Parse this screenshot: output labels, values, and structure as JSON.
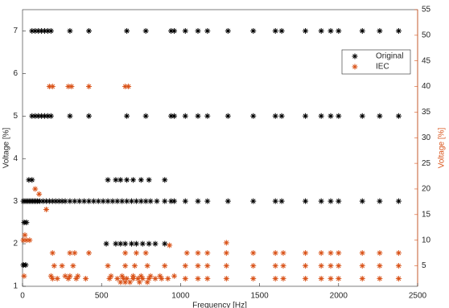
{
  "chart_data": {
    "type": "scatter",
    "xlabel": "Frequency [Hz]",
    "ylabel": "Voltage [%]",
    "y2label": "Voltage [%]",
    "xlim": [
      0,
      2500
    ],
    "xticks": [
      0,
      500,
      1000,
      1500,
      2000,
      2500
    ],
    "ylim": [
      1,
      7.5
    ],
    "yticks": [
      1,
      2,
      3,
      4,
      5,
      6,
      7
    ],
    "y2lim": [
      1,
      55
    ],
    "y2ticks": [
      5,
      10,
      15,
      20,
      25,
      30,
      35,
      40,
      45,
      50,
      55
    ],
    "y2color": "#d95319",
    "legend": "upper right",
    "series": [
      {
        "name": "Original",
        "color": "#000000",
        "x": [
          60,
          80,
          100,
          120,
          140,
          160,
          180,
          300,
          420,
          660,
          780,
          940,
          960,
          1030,
          1110,
          1170,
          1300,
          1460,
          1600,
          1640,
          1790,
          1890,
          1950,
          2000,
          2150,
          2260,
          2380,
          60,
          80,
          100,
          120,
          140,
          160,
          180,
          300,
          420,
          660,
          780,
          940,
          960,
          1030,
          1110,
          1170,
          1300,
          1460,
          1600,
          1640,
          1790,
          1890,
          1950,
          2000,
          2150,
          2260,
          2380,
          5,
          15,
          25,
          35,
          45,
          55,
          65,
          75,
          85,
          95,
          110,
          130,
          150,
          170,
          190,
          210,
          230,
          250,
          270,
          300,
          330,
          360,
          390,
          420,
          450,
          480,
          510,
          540,
          570,
          600,
          630,
          660,
          690,
          720,
          750,
          780,
          810,
          850,
          900,
          940,
          960,
          1030,
          1110,
          1170,
          1300,
          1460,
          1600,
          1640,
          1790,
          1890,
          1950,
          2000,
          2150,
          2260,
          2380,
          40,
          60,
          540,
          590,
          620,
          660,
          700,
          750,
          800,
          900,
          10,
          25,
          530,
          590,
          620,
          650,
          690,
          720,
          760,
          800,
          840,
          900,
          5,
          20
        ],
        "values": [
          7,
          7,
          7,
          7,
          7,
          7,
          7,
          7,
          7,
          7,
          7,
          7,
          7,
          7,
          7,
          7,
          7,
          7,
          7,
          7,
          7,
          7,
          7,
          7,
          7,
          7,
          7,
          5,
          5,
          5,
          5,
          5,
          5,
          5,
          5,
          5,
          5,
          5,
          5,
          5,
          5,
          5,
          5,
          5,
          5,
          5,
          5,
          5,
          5,
          5,
          5,
          5,
          5,
          5,
          3,
          3,
          3,
          3,
          3,
          3,
          3,
          3,
          3,
          3,
          3,
          3,
          3,
          3,
          3,
          3,
          3,
          3,
          3,
          3,
          3,
          3,
          3,
          3,
          3,
          3,
          3,
          3,
          3,
          3,
          3,
          3,
          3,
          3,
          3,
          3,
          3,
          3,
          3,
          3,
          3,
          3,
          3,
          3,
          3,
          3,
          3,
          3,
          3,
          3,
          3,
          3,
          3,
          3,
          3,
          3.5,
          3.5,
          3.5,
          3.5,
          3.5,
          3.5,
          3.5,
          3.5,
          3.5,
          3.5,
          2.5,
          2.5,
          2,
          2,
          2,
          2,
          2,
          2,
          2,
          2,
          2,
          2,
          1.5,
          1.5
        ]
      },
      {
        "name": "IEC",
        "color": "#d95319",
        "axis": "y2",
        "x": [
          170,
          190,
          290,
          310,
          420,
          650,
          670,
          80,
          105,
          150,
          15,
          5,
          25,
          45,
          930,
          1290,
          190,
          300,
          330,
          420,
          650,
          720,
          780,
          1040,
          1110,
          1170,
          1290,
          1460,
          1600,
          1650,
          1790,
          1890,
          1950,
          2000,
          2150,
          2260,
          2380,
          200,
          250,
          320,
          540,
          650,
          710,
          790,
          900,
          1030,
          1110,
          1170,
          1290,
          1460,
          1600,
          1650,
          1790,
          1890,
          1950,
          2000,
          2150,
          2260,
          2380,
          10,
          180,
          270,
          300,
          350,
          560,
          630,
          700,
          750,
          810,
          870,
          960,
          190,
          220,
          290,
          340,
          400,
          550,
          600,
          640,
          660,
          700,
          730,
          760,
          800,
          840,
          880,
          920,
          1030,
          1110,
          1170,
          1290,
          1460,
          1600,
          1650,
          1790,
          1890,
          1950,
          2000,
          2150,
          2260,
          2380,
          620,
          650,
          680,
          740,
          790
        ],
        "values": [
          40,
          40,
          40,
          40,
          40,
          40,
          40,
          20,
          19,
          16,
          11,
          10,
          10,
          10,
          9,
          9.5,
          7.5,
          7.5,
          7.5,
          7.5,
          7.5,
          7.5,
          7.5,
          7.5,
          7.5,
          7.5,
          7.5,
          7.5,
          7.5,
          7.5,
          7.5,
          7.5,
          7.5,
          7.5,
          7.5,
          7.5,
          7.5,
          5,
          5,
          5,
          5,
          5,
          5,
          5,
          5,
          5,
          5,
          5,
          5,
          5,
          5,
          5,
          5,
          5,
          5,
          5,
          5,
          5,
          5,
          3,
          3,
          3,
          3,
          3,
          3,
          3,
          3,
          3,
          3,
          3,
          3,
          2.5,
          2.5,
          2.5,
          2.5,
          2.5,
          2.5,
          2.5,
          2.5,
          2.5,
          2.5,
          2.5,
          2.5,
          2.5,
          2.5,
          2.5,
          2.5,
          2.5,
          2.5,
          2.5,
          2.5,
          2.5,
          2.5,
          2.5,
          2.5,
          2.5,
          2.5,
          2.5,
          2.5,
          2.5,
          2.5,
          1.8,
          1.8,
          1.8,
          1.8,
          1.8
        ]
      }
    ]
  }
}
